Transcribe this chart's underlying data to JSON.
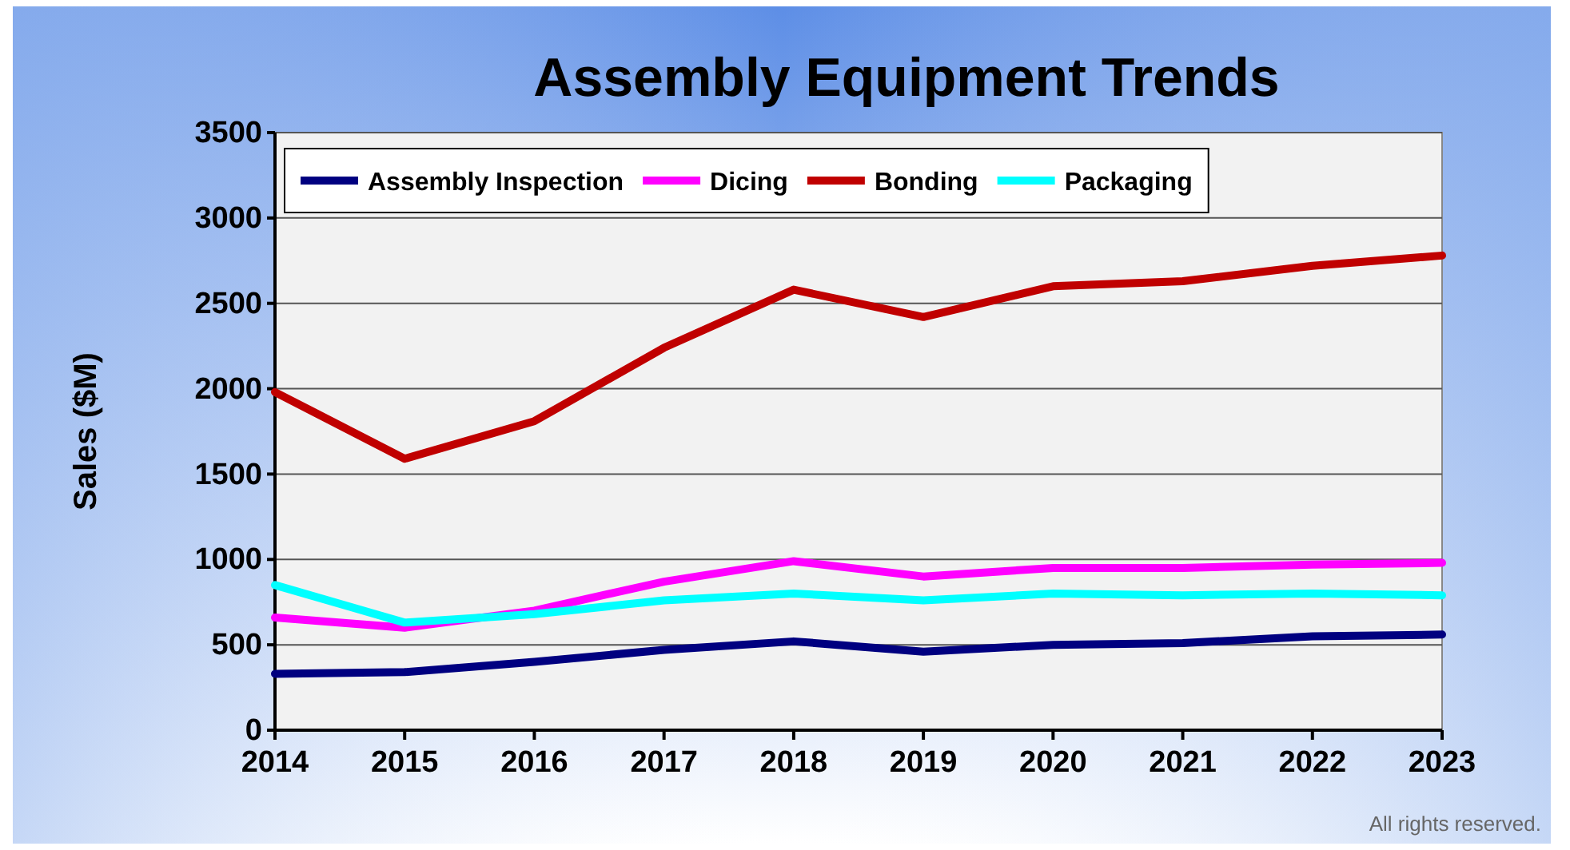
{
  "chart_data": {
    "type": "line",
    "title": "Assembly Equipment Trends",
    "ylabel": "Sales ($M)",
    "x": [
      2014,
      2015,
      2016,
      2017,
      2018,
      2019,
      2020,
      2021,
      2022,
      2023
    ],
    "xlim": [
      2014,
      2023
    ],
    "xticks": [
      2014,
      2015,
      2016,
      2017,
      2018,
      2019,
      2020,
      2021,
      2022,
      2023
    ],
    "ylim": [
      0,
      3500
    ],
    "yticks": [
      0,
      500,
      1000,
      1500,
      2000,
      2500,
      3000,
      3500
    ],
    "grid": "y",
    "legend": "top left",
    "marker": "none",
    "line_style": "solid",
    "series": [
      {
        "name": "Assembly Inspection",
        "color": "#000080",
        "values": [
          330,
          340,
          400,
          470,
          520,
          460,
          500,
          510,
          550,
          560
        ]
      },
      {
        "name": "Dicing",
        "color": "#ff00ff",
        "values": [
          660,
          600,
          700,
          870,
          990,
          900,
          950,
          950,
          970,
          980
        ]
      },
      {
        "name": "Bonding",
        "color": "#c00000",
        "values": [
          1980,
          1590,
          1810,
          2240,
          2580,
          2420,
          2600,
          2630,
          2720,
          2780
        ]
      },
      {
        "name": "Packaging",
        "color": "#00ffff",
        "values": [
          850,
          630,
          680,
          760,
          800,
          760,
          800,
          790,
          800,
          790
        ]
      }
    ],
    "annotations": [
      "All rights reserved."
    ]
  }
}
